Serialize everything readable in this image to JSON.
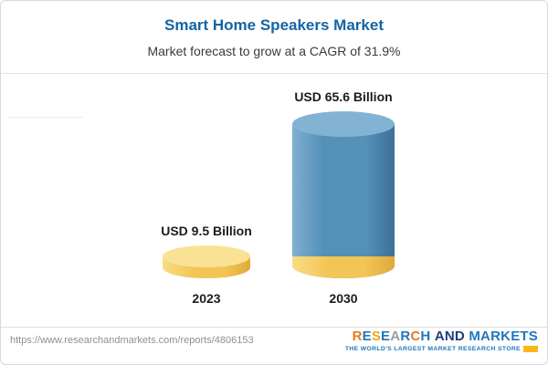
{
  "header": {
    "title": "Smart Home Speakers Market",
    "subtitle": "Market forecast to grow at a CAGR of 31.9%",
    "title_color": "#1464a5"
  },
  "chart_data": {
    "type": "bar",
    "style": "3d-cylinder",
    "categories": [
      "2023",
      "2030"
    ],
    "values": [
      9.5,
      65.6
    ],
    "value_labels": [
      "USD 9.5 Billion",
      "USD 65.6 Billion"
    ],
    "unit": "USD Billion",
    "title": "Smart Home Speakers Market",
    "xlabel": "",
    "ylabel": "",
    "ylim": [
      0,
      65.6
    ],
    "grid": false,
    "legend": false,
    "layout_hints": {
      "bar_style": "3d-cylinder",
      "base_segment_on_2030_equals_2023_value": true
    },
    "colors": {
      "gold": "#f2c655",
      "gold_light": "#f8dc85",
      "gold_dark": "#dfa93a",
      "gold_top": "#f9e294",
      "blue": "#5590b8",
      "blue_light": "#7fb0cf",
      "blue_dark": "#3d7096",
      "blue_top": "#82b3d3"
    }
  },
  "footer": {
    "url": "https://www.researchandmarkets.com/reports/4806153",
    "logo": {
      "words": [
        {
          "text": "RESEARCH",
          "colors": [
            "#e87a21",
            "#2277bd",
            "#f0a61f",
            "#2277bd",
            "#9a9ea1",
            "#2277bd",
            "#e87a21",
            "#2277bd"
          ]
        },
        {
          "text": "AND",
          "colors": [
            "#1d3d7b",
            "#1d3d7b",
            "#1d3d7b"
          ]
        },
        {
          "text": "MARKETS",
          "colors": [
            "#2277bd",
            "#2277bd",
            "#2277bd",
            "#2277bd",
            "#2277bd",
            "#2277bd",
            "#2277bd"
          ]
        }
      ],
      "tagline": "THE WORLD'S LARGEST MARKET RESEARCH STORE",
      "tagline_color": "#2277bd",
      "accent_color": "#fdb515"
    }
  }
}
